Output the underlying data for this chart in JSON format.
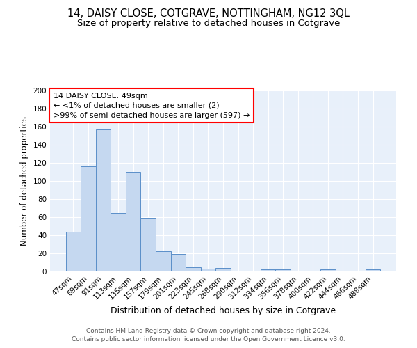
{
  "title": "14, DAISY CLOSE, COTGRAVE, NOTTINGHAM, NG12 3QL",
  "subtitle": "Size of property relative to detached houses in Cotgrave",
  "xlabel": "Distribution of detached houses by size in Cotgrave",
  "ylabel": "Number of detached properties",
  "categories": [
    "47sqm",
    "69sqm",
    "91sqm",
    "113sqm",
    "135sqm",
    "157sqm",
    "179sqm",
    "201sqm",
    "223sqm",
    "245sqm",
    "268sqm",
    "290sqm",
    "312sqm",
    "334sqm",
    "356sqm",
    "378sqm",
    "400sqm",
    "422sqm",
    "444sqm",
    "466sqm",
    "488sqm"
  ],
  "values": [
    44,
    116,
    157,
    65,
    110,
    59,
    22,
    19,
    5,
    3,
    4,
    0,
    0,
    2,
    2,
    0,
    0,
    2,
    0,
    0,
    2
  ],
  "bar_color": "#c5d8f0",
  "bar_edge_color": "#5b8fc9",
  "background_color": "#e8f0fa",
  "grid_color": "#ffffff",
  "ylim": [
    0,
    200
  ],
  "yticks": [
    0,
    20,
    40,
    60,
    80,
    100,
    120,
    140,
    160,
    180,
    200
  ],
  "annotation_text_line1": "14 DAISY CLOSE: 49sqm",
  "annotation_text_line2": "← <1% of detached houses are smaller (2)",
  "annotation_text_line3": ">99% of semi-detached houses are larger (597) →",
  "footer_line1": "Contains HM Land Registry data © Crown copyright and database right 2024.",
  "footer_line2": "Contains public sector information licensed under the Open Government Licence v3.0.",
  "title_fontsize": 10.5,
  "subtitle_fontsize": 9.5,
  "xlabel_fontsize": 9,
  "ylabel_fontsize": 8.5,
  "tick_fontsize": 7.5,
  "annotation_fontsize": 8,
  "footer_fontsize": 6.5
}
